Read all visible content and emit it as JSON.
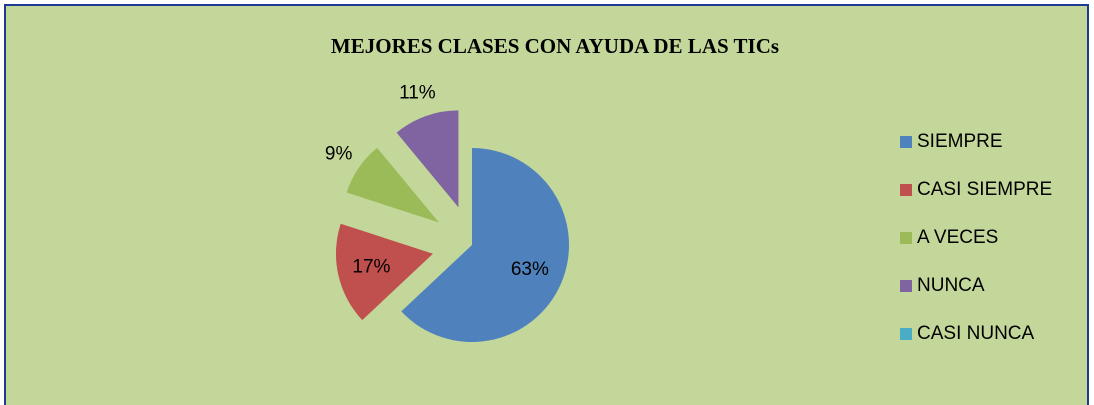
{
  "chart_data": {
    "type": "pie",
    "title": "MEJORES CLASES CON AYUDA DE LAS TICs",
    "categories": [
      "SIEMPRE",
      "CASI SIEMPRE",
      "A VECES",
      "NUNCA",
      "CASI NUNCA"
    ],
    "values": [
      63,
      17,
      9,
      11,
      0
    ],
    "value_labels": [
      "63%",
      "17%",
      "9%",
      "11%",
      null
    ],
    "colors": [
      "#4f81bd",
      "#c0504d",
      "#9bbb59",
      "#8064a2",
      "#4bacc6"
    ],
    "legend": "right"
  }
}
